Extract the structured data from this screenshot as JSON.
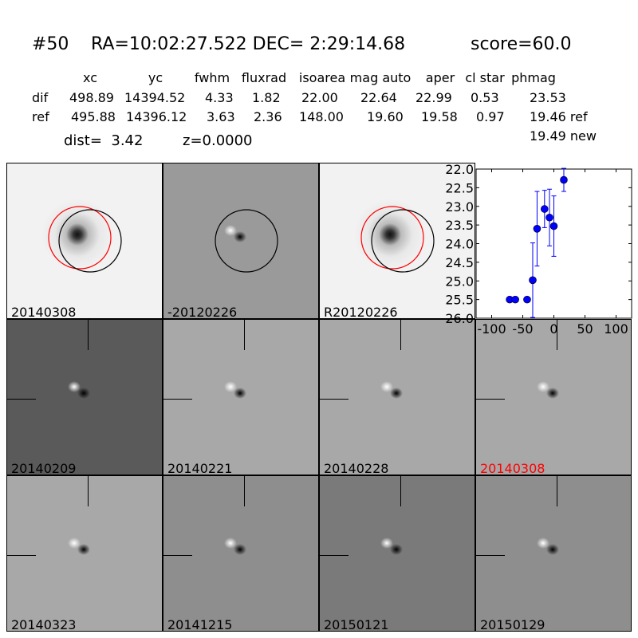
{
  "header": {
    "id": "#50",
    "coords": "RA=10:02:27.522 DEC= 2:29:14.68",
    "score": "score=60.0"
  },
  "table": {
    "columns": [
      "xc",
      "yc",
      "fwhm",
      "fluxrad",
      "isoarea",
      "mag auto",
      "aper",
      "cl star",
      "phmag"
    ],
    "rows": [
      {
        "label": "dif",
        "values": [
          "498.89",
          "14394.52",
          "4.33",
          "1.82",
          "22.00",
          "22.64",
          "22.99",
          "0.53",
          "23.53"
        ]
      },
      {
        "label": "ref",
        "values": [
          "495.88",
          "14396.12",
          "3.63",
          "2.36",
          "148.00",
          "19.60",
          "19.58",
          "0.97",
          "19.46 ref"
        ]
      }
    ],
    "new_mag": "19.49 new",
    "dist": "dist=  3.42",
    "z": "z=0.0000"
  },
  "panels": [
    {
      "label": "20140308",
      "color": "#000000",
      "style": "star-circles"
    },
    {
      "label": "-20120226",
      "color": "#000000",
      "style": "diff-circle"
    },
    {
      "label": "R20120226",
      "color": "#000000",
      "style": "star-circles"
    },
    {
      "label": "20140209",
      "color": "#000000",
      "style": "dark"
    },
    {
      "label": "20140221",
      "color": "#000000",
      "style": "light"
    },
    {
      "label": "20140228",
      "color": "#000000",
      "style": "light"
    },
    {
      "label": "20140308",
      "color": "#ff0000",
      "style": "light"
    },
    {
      "label": "20140323",
      "color": "#000000",
      "style": "light"
    },
    {
      "label": "20141215",
      "color": "#000000",
      "style": "mid"
    },
    {
      "label": "20150121",
      "color": "#000000",
      "style": "noisy"
    },
    {
      "label": "20150129",
      "color": "#000000",
      "style": "mid"
    }
  ],
  "chart_data": {
    "type": "scatter",
    "title": "",
    "xlabel": "",
    "ylabel": "",
    "xlim": [
      -125,
      125
    ],
    "ylim": [
      26.0,
      22.0
    ],
    "y_inverted": true,
    "xticks": [
      "-100",
      "-50",
      "0",
      "50",
      "100"
    ],
    "yticks": [
      "22.0",
      "22.5",
      "23.0",
      "23.5",
      "24.0",
      "24.5",
      "25.0",
      "25.5",
      "26.0"
    ],
    "marker_color": "#0000ff",
    "points": [
      {
        "x": -71,
        "y": 25.5,
        "err": 0.05
      },
      {
        "x": -62,
        "y": 25.5,
        "err": 0.05
      },
      {
        "x": -43,
        "y": 25.5,
        "err": 0.05
      },
      {
        "x": -34,
        "y": 24.98,
        "err": 1.0
      },
      {
        "x": -27,
        "y": 23.6,
        "err": 1.0
      },
      {
        "x": -15,
        "y": 23.07,
        "err": 0.5
      },
      {
        "x": -7,
        "y": 23.3,
        "err": 0.76
      },
      {
        "x": 0,
        "y": 23.53,
        "err": 0.81
      },
      {
        "x": 16,
        "y": 22.29,
        "err": 0.31
      }
    ]
  }
}
